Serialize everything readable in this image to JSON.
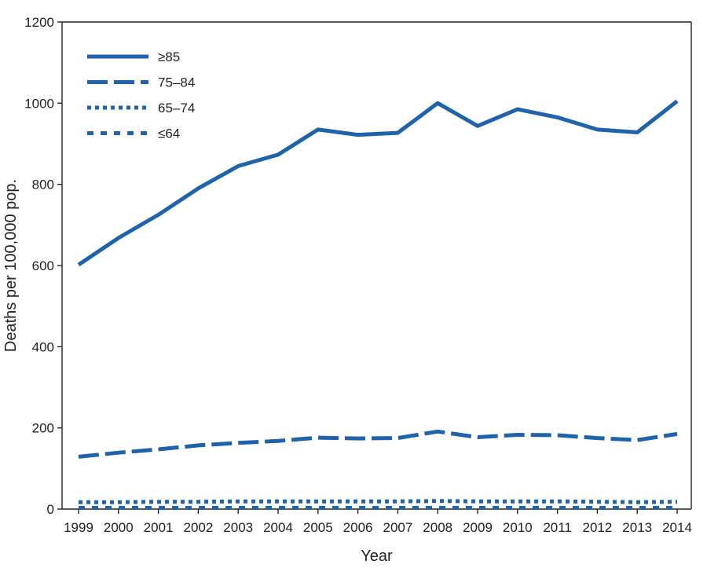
{
  "chart_data": {
    "type": "line",
    "title": "",
    "xlabel": "Year",
    "ylabel": "Deaths per 100,000 pop.",
    "ylim": [
      0,
      1200
    ],
    "yticks": [
      0,
      200,
      400,
      600,
      800,
      1000,
      1200
    ],
    "x": [
      "1999",
      "2000",
      "2001",
      "2002",
      "2003",
      "2004",
      "2005",
      "2006",
      "2007",
      "2008",
      "2009",
      "2010",
      "2011",
      "2012",
      "2013",
      "2014"
    ],
    "grid": false,
    "legend_position": "top-left",
    "series": [
      {
        "name": "≥85",
        "style": "solid",
        "color": "#1f63ad",
        "values": [
          602,
          668,
          725,
          790,
          845,
          873,
          935,
          922,
          927,
          1000,
          944,
          985,
          965,
          935,
          928,
          1005
        ]
      },
      {
        "name": "75–84",
        "style": "dashed",
        "color": "#1f63ad",
        "values": [
          129,
          139,
          147,
          157,
          163,
          168,
          176,
          174,
          175,
          191,
          177,
          183,
          182,
          175,
          170,
          185
        ]
      },
      {
        "name": "65–74",
        "style": "dotted",
        "color": "#1f63ad",
        "values": [
          17,
          17,
          18,
          18,
          19,
          19,
          19,
          19,
          19,
          20,
          19,
          19,
          19,
          18,
          17,
          18
        ]
      },
      {
        "name": "≤64",
        "style": "dash-dot-square",
        "color": "#1f63ad",
        "values": [
          3,
          3,
          3,
          3,
          3,
          3,
          3,
          3,
          3,
          3,
          3,
          3,
          3,
          3,
          3,
          3
        ]
      }
    ]
  }
}
